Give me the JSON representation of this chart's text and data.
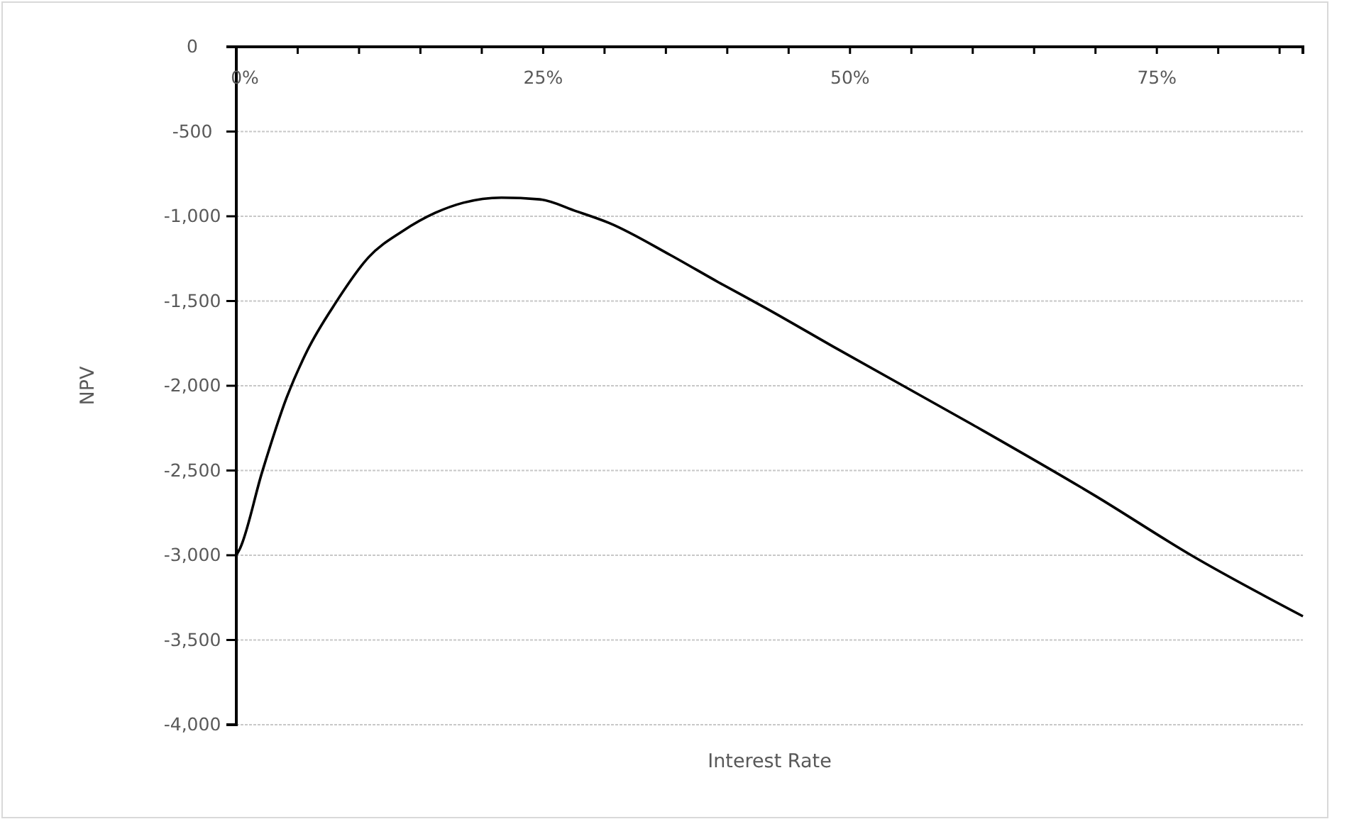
{
  "chart_data": {
    "type": "line",
    "xlabel": "Interest Rate",
    "ylabel": "NPV",
    "x": [
      0,
      0.3,
      2.1,
      4.1,
      5.8,
      8.1,
      10.8,
      13.5,
      16.2,
      18.5,
      21.6,
      24.7,
      27.7,
      30.4,
      35.4,
      39.3,
      43.1,
      48.9,
      60,
      70,
      77.8,
      86.9
    ],
    "series": [
      {
        "color": "#000000",
        "values": [
          -3000,
          -2960,
          -2510,
          -2070,
          -1790,
          -1510,
          -1240,
          -1090,
          -980,
          -920,
          -890,
          -900,
          -970,
          -1040,
          -1230,
          -1390,
          -1540,
          -1780,
          -2230,
          -2650,
          -3000,
          -3360
        ]
      }
    ],
    "xlim": [
      0,
      86.9
    ],
    "xticks": [
      {
        "value": 0,
        "label": "0%"
      },
      {
        "value": 5,
        "label": null
      },
      {
        "value": 10,
        "label": null
      },
      {
        "value": 15,
        "label": null
      },
      {
        "value": 20,
        "label": null
      },
      {
        "value": 25,
        "label": "25%"
      },
      {
        "value": 30,
        "label": null
      },
      {
        "value": 35,
        "label": null
      },
      {
        "value": 40,
        "label": null
      },
      {
        "value": 45,
        "label": null
      },
      {
        "value": 50,
        "label": "50%"
      },
      {
        "value": 55,
        "label": null
      },
      {
        "value": 60,
        "label": null
      },
      {
        "value": 65,
        "label": null
      },
      {
        "value": 70,
        "label": null
      },
      {
        "value": 75,
        "label": "75%"
      },
      {
        "value": 80,
        "label": null
      },
      {
        "value": 85,
        "label": null
      }
    ],
    "ylim": [
      -4000,
      0
    ],
    "yticks": [
      0,
      -500,
      {
        "value": -1000,
        "label": "-1,000"
      },
      {
        "value": -1500,
        "label": "-1,500"
      },
      {
        "value": -2000,
        "label": "-2,000"
      },
      {
        "value": -2500,
        "label": "-2,500"
      },
      {
        "value": -3000,
        "label": "-3,000"
      },
      {
        "value": -3500,
        "label": "-3,500"
      },
      {
        "value": -4000,
        "label": "-4,000"
      }
    ],
    "grid": "y",
    "marker": "none",
    "line_style": "solid"
  }
}
